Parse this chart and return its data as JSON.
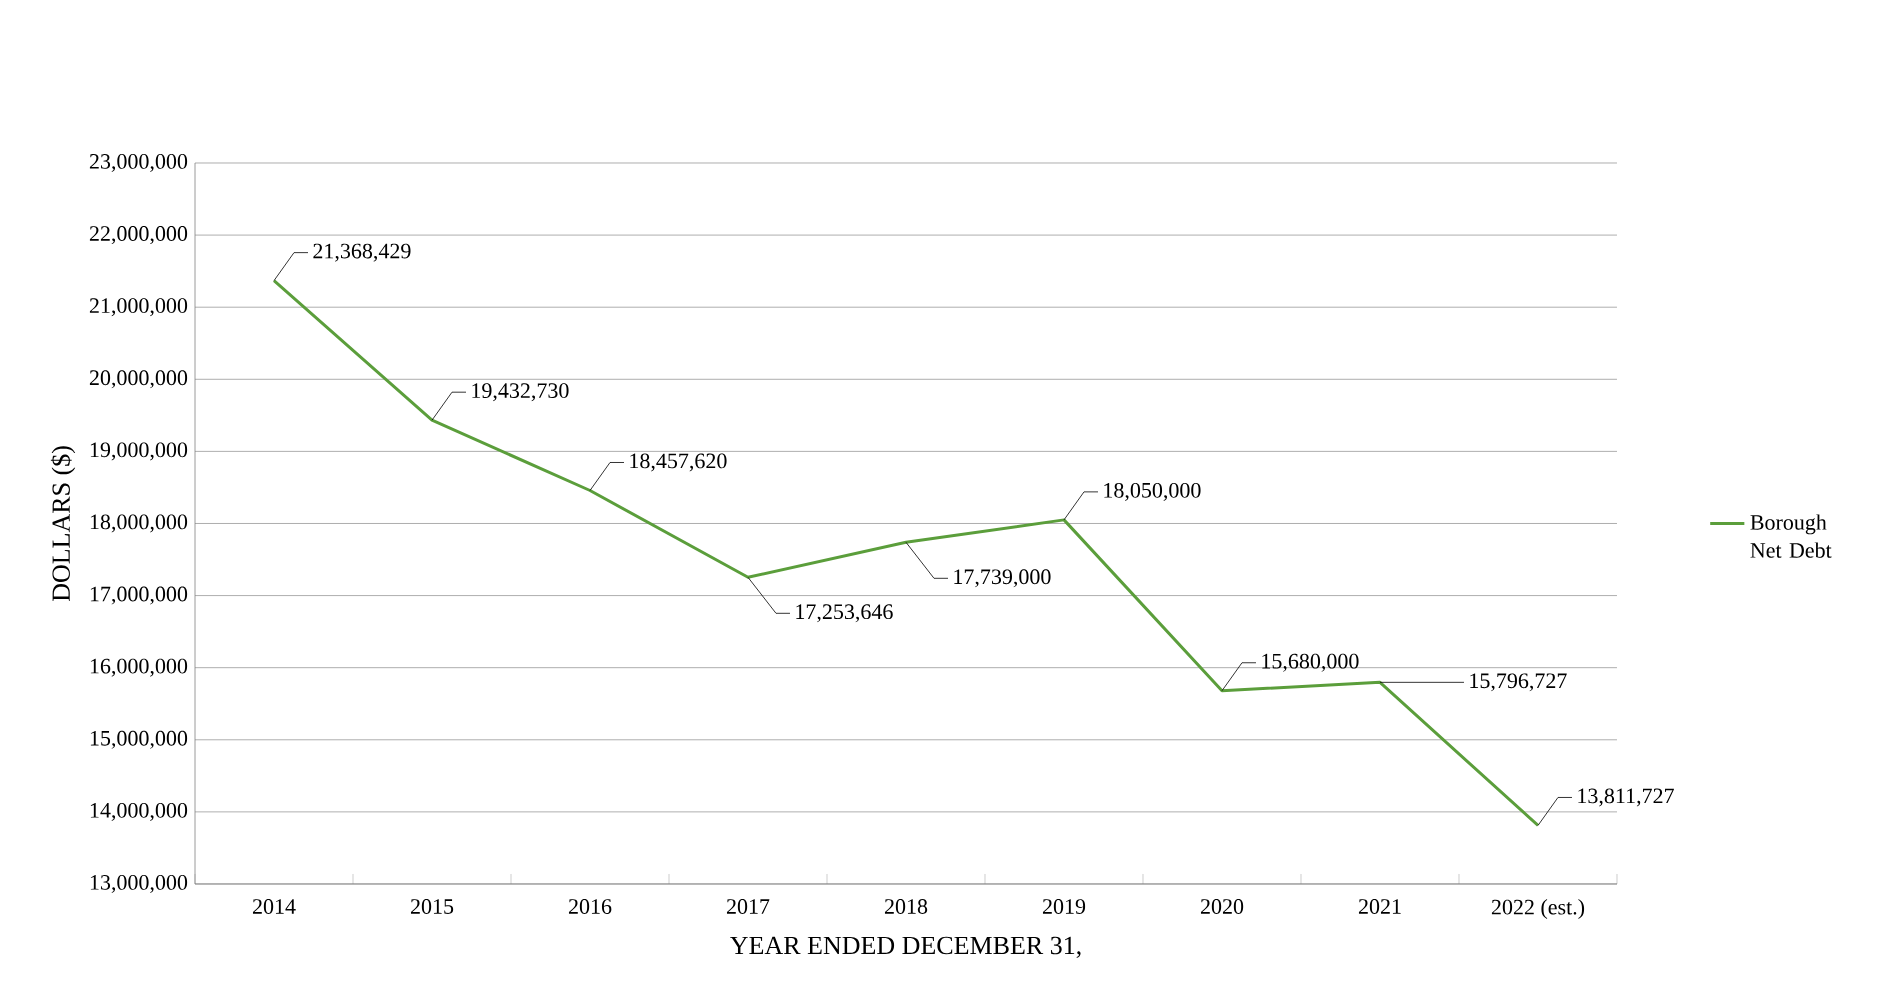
{
  "chart_data": {
    "type": "line",
    "xlabel": "YEAR ENDED DECEMBER 31,",
    "ylabel": "DOLLARS ($)",
    "categories": [
      "2014",
      "2015",
      "2016",
      "2017",
      "2018",
      "2019",
      "2020",
      "2021",
      "2022 (est.)"
    ],
    "series": [
      {
        "name": "Borough Net Debt",
        "color": "#5b9e3b",
        "values": [
          21368429,
          19432730,
          18457620,
          17253646,
          17739000,
          18050000,
          15680000,
          15796727,
          13811727
        ],
        "value_labels": [
          "21,368,429",
          "19,432,730",
          "18,457,620",
          "17,253,646",
          "17,739,000",
          "18,050,000",
          "15,680,000",
          "15,796,727",
          "13,811,727"
        ]
      }
    ],
    "ylim": [
      13000000,
      23000000
    ],
    "yticks": [
      {
        "value": 13000000,
        "label": "13,000,000"
      },
      {
        "value": 14000000,
        "label": "14,000,000"
      },
      {
        "value": 15000000,
        "label": "15,000,000"
      },
      {
        "value": 16000000,
        "label": "16,000,000"
      },
      {
        "value": 17000000,
        "label": "17,000,000"
      },
      {
        "value": 18000000,
        "label": "18,000,000"
      },
      {
        "value": 19000000,
        "label": "19,000,000"
      },
      {
        "value": 20000000,
        "label": "20,000,000"
      },
      {
        "value": 21000000,
        "label": "21,000,000"
      },
      {
        "value": 22000000,
        "label": "22,000,000"
      },
      {
        "value": 23000000,
        "label": "23,000,000"
      }
    ],
    "grid": "y",
    "legend": "right",
    "marker": "none",
    "line_style": "solid"
  }
}
